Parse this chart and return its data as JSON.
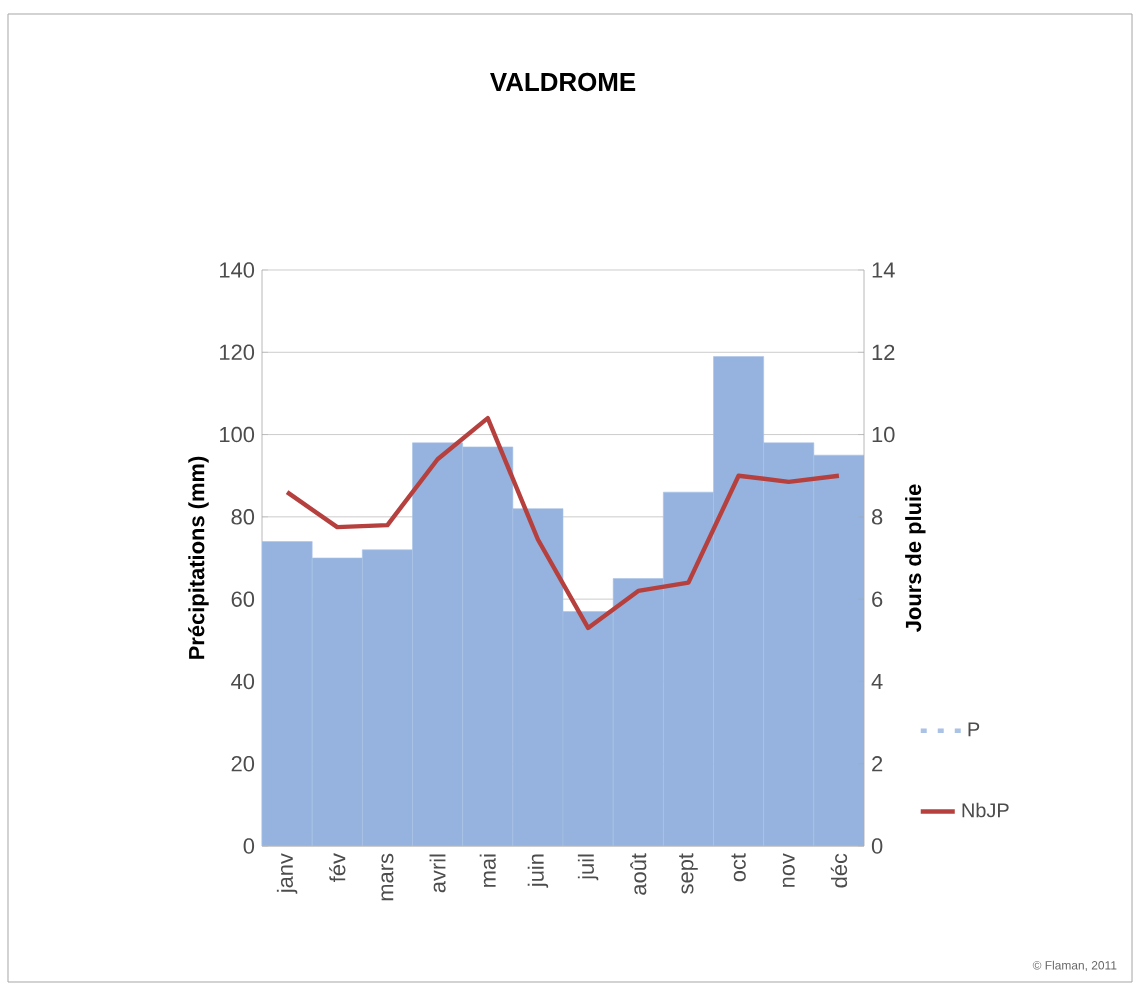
{
  "chart_data": {
    "type": "bar",
    "title": "VALDROME",
    "ylabel": "Précipitations (mm)",
    "y2label": "Jours de pluie",
    "categories": [
      "janv",
      "fév",
      "mars",
      "avril",
      "mai",
      "juin",
      "juil",
      "août",
      "sept",
      "oct",
      "nov",
      "déc"
    ],
    "series": [
      {
        "name": "P",
        "color": "#95b3de",
        "values": [
          74,
          70,
          72,
          98,
          97,
          82,
          57,
          65,
          86,
          119,
          98,
          95
        ]
      },
      {
        "name": "NbJP",
        "type": "line",
        "axis": "y2",
        "color": "#b5403e",
        "values": [
          8.6,
          7.75,
          7.8,
          9.4,
          10.4,
          7.45,
          5.3,
          6.2,
          6.4,
          9.0,
          8.85,
          9.0
        ]
      }
    ],
    "ylim": [
      0,
      140
    ],
    "yticks": [
      0,
      20,
      40,
      60,
      80,
      100,
      120,
      140
    ],
    "y2lim": [
      0,
      14
    ],
    "y2ticks": [
      0,
      2,
      4,
      6,
      8,
      10,
      12,
      14
    ],
    "grid": "y",
    "legend": "right",
    "marker": "none",
    "annotations": [
      "© Flaman, 2011"
    ]
  }
}
